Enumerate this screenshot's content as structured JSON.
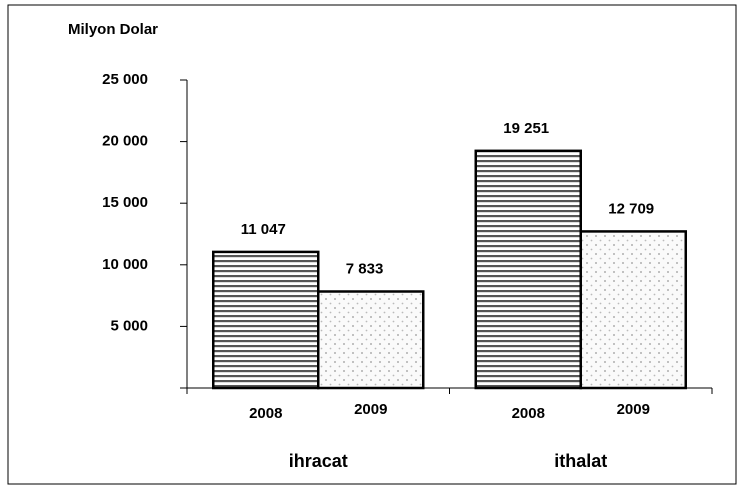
{
  "chart_data": {
    "type": "bar",
    "y_label": "Milyon Dolar",
    "categories": [
      "ihracat",
      "ithalat"
    ],
    "series": [
      {
        "name": "2008",
        "pattern": "horizontal-lines",
        "values": [
          11047,
          19251
        ],
        "value_labels": [
          "11 047",
          "19 251"
        ]
      },
      {
        "name": "2009",
        "pattern": "dots",
        "values": [
          7833,
          12709
        ],
        "value_labels": [
          "7 833",
          "12 709"
        ]
      }
    ],
    "ylim": [
      0,
      25000
    ],
    "yticks": [
      {
        "value": 5000,
        "label": "5 000"
      },
      {
        "value": 10000,
        "label": "10 000"
      },
      {
        "value": 15000,
        "label": "15 000"
      },
      {
        "value": 20000,
        "label": "20 000"
      },
      {
        "value": 25000,
        "label": "25 000"
      }
    ]
  }
}
